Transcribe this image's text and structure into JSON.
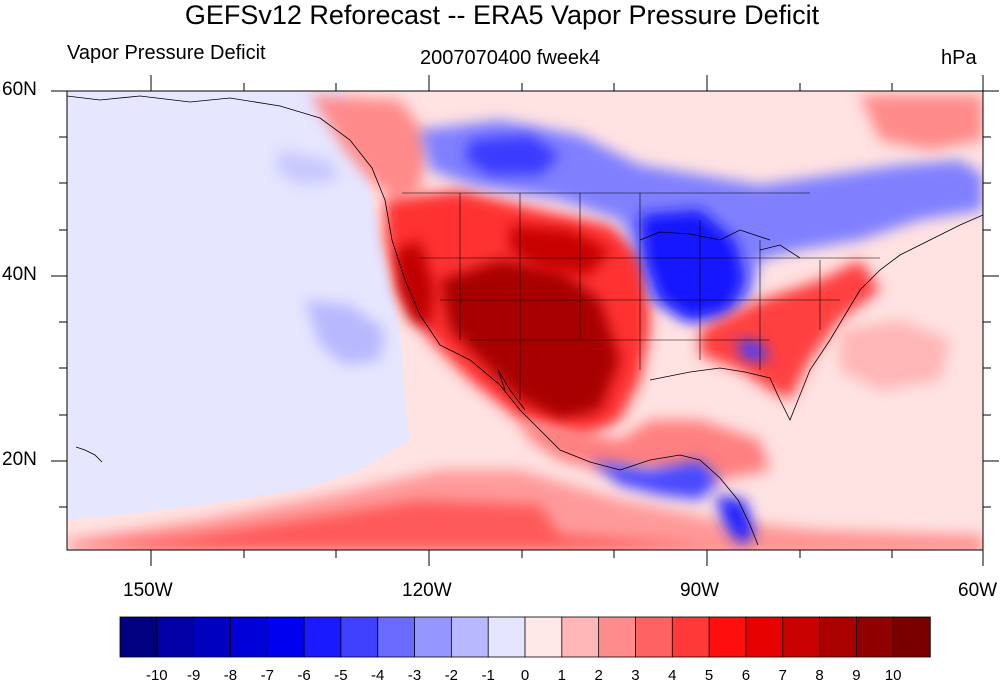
{
  "title": "GEFSv12 Reforecast -- ERA5 Vapor Pressure Deficit",
  "left_string": "Vapor Pressure Deficit",
  "center_string": "2007070400 fweek4",
  "right_string": "hPa",
  "lat_labels": [
    "60N",
    "40N",
    "20N"
  ],
  "lon_labels": [
    "150W",
    "120W",
    "90W",
    "60W"
  ],
  "colorbar": {
    "labels": [
      "-10",
      "-9",
      "-8",
      "-7",
      "-6",
      "-5",
      "-4",
      "-3",
      "-2",
      "-1",
      "0",
      "1",
      "2",
      "3",
      "4",
      "5",
      "6",
      "7",
      "8",
      "9",
      "10"
    ],
    "colors": [
      "#000080",
      "#0000a6",
      "#0000c0",
      "#0000d9",
      "#0000f0",
      "#1a1aff",
      "#4040ff",
      "#6a6aff",
      "#9696ff",
      "#b8b8ff",
      "#e4e4ff",
      "#ffe8e8",
      "#ffb6b6",
      "#ff8c8c",
      "#ff6262",
      "#ff3838",
      "#ff0e0e",
      "#e60000",
      "#c80000",
      "#aa0000",
      "#900000",
      "#7a0000"
    ]
  },
  "map": {
    "lon_range": [
      -159,
      -60
    ],
    "lat_range": [
      10,
      60
    ]
  }
}
